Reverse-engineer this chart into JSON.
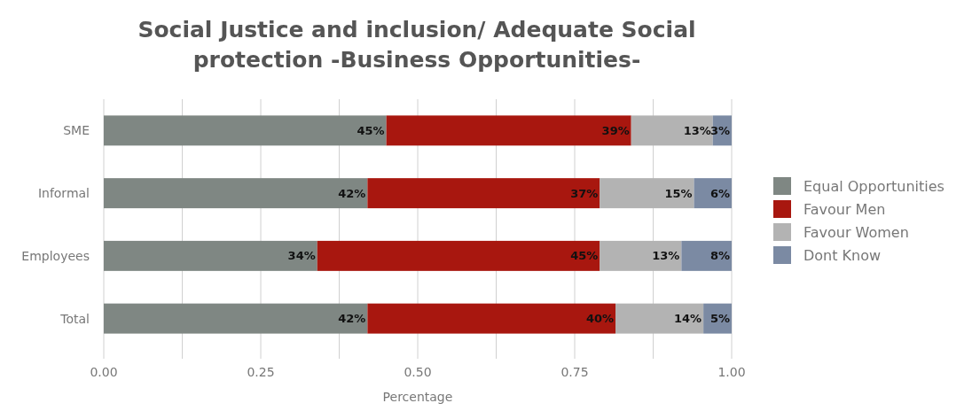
{
  "chart_data": {
    "type": "bar",
    "orientation": "horizontal",
    "stacked": true,
    "title": "Social Justice and inclusion/ Adequate Social protection -Business Opportunities-",
    "xlabel": "Percentage",
    "categories": [
      "SME",
      "Informal",
      "Employees",
      "Total"
    ],
    "series": [
      {
        "name": "Equal Opportunities",
        "color": "#7f8783",
        "values": [
          0.45,
          0.42,
          0.34,
          0.42
        ],
        "value_labels": [
          "45%",
          "42%",
          "34%",
          "42%"
        ]
      },
      {
        "name": "Favour Men",
        "color": "#a8170f",
        "values": [
          0.39,
          0.37,
          0.45,
          0.395
        ],
        "value_labels": [
          "39%",
          "37%",
          "45%",
          "40%"
        ]
      },
      {
        "name": "Favour Women",
        "color": "#b3b3b3",
        "values": [
          0.13,
          0.15,
          0.13,
          0.14
        ],
        "value_labels": [
          "13%",
          "15%",
          "13%",
          "14%"
        ]
      },
      {
        "name": "Dont Know",
        "color": "#7b8aa3",
        "values": [
          0.03,
          0.06,
          0.08,
          0.045
        ],
        "value_labels": [
          "3%",
          "6%",
          "8%",
          "5%"
        ]
      }
    ],
    "xlim": [
      0,
      1
    ],
    "xticks": [
      {
        "value": 0,
        "label": "0.00"
      },
      {
        "value": 0.125,
        "label": null
      },
      {
        "value": 0.25,
        "label": "0.25"
      },
      {
        "value": 0.375,
        "label": null
      },
      {
        "value": 0.5,
        "label": "0.50"
      },
      {
        "value": 0.625,
        "label": null
      },
      {
        "value": 0.75,
        "label": "0.75"
      },
      {
        "value": 0.875,
        "label": null
      },
      {
        "value": 1,
        "label": "1.00"
      }
    ],
    "grid": "x",
    "legend": "right"
  }
}
